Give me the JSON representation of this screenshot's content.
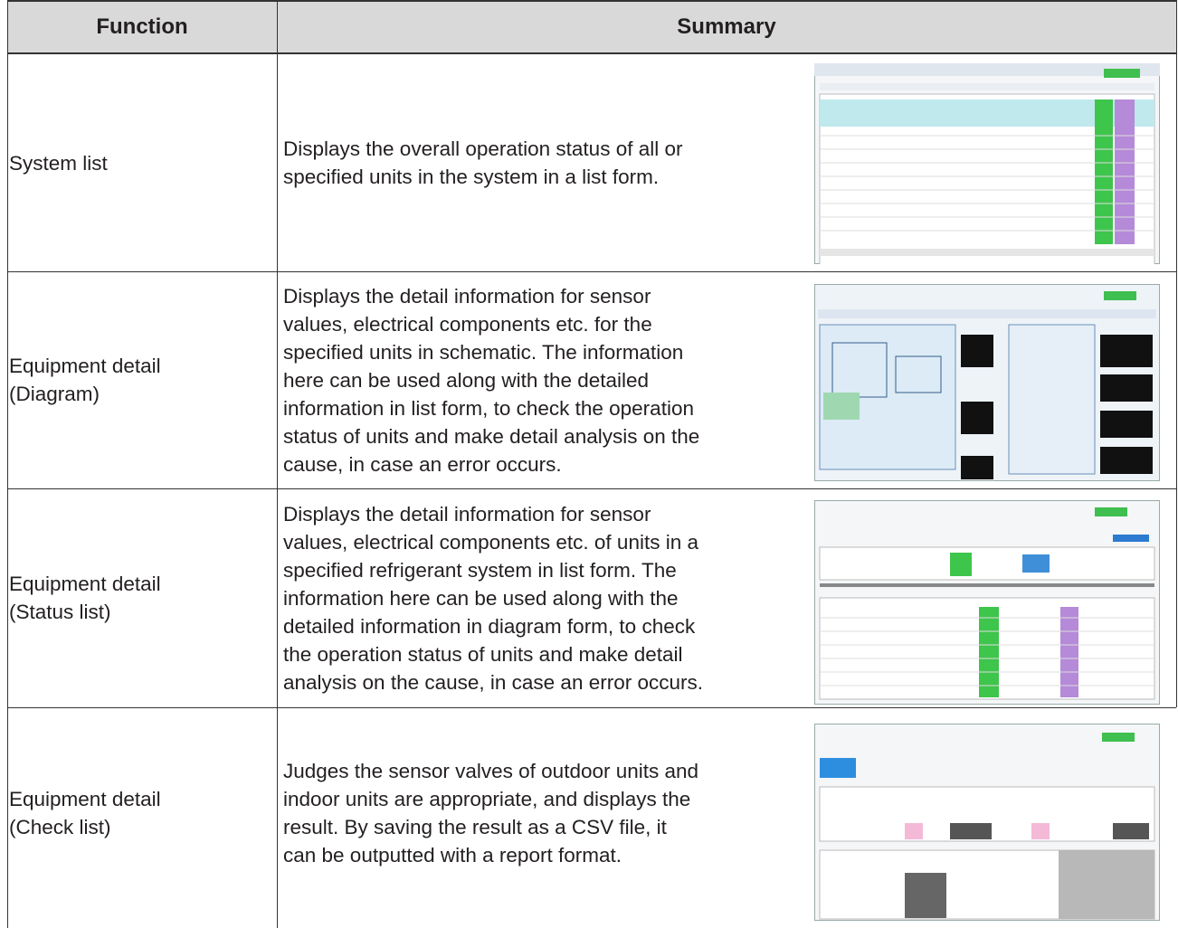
{
  "table": {
    "header": [
      "Function",
      "Summary"
    ],
    "rows": [
      {
        "function": [
          "System list"
        ],
        "summary": [
          "Displays the overall operation status of all or",
          "specified units in the system in a list form."
        ]
      },
      {
        "function": [
          "Equipment detail",
          "(Diagram)"
        ],
        "summary": [
          "Displays the detail information for sensor",
          "values, electrical components etc. for the",
          "specified units in schematic. The information",
          "here can be used along with the detailed",
          "information in list form, to check the operation",
          "status of units and make detail analysis on the",
          "cause, in case an error occurs."
        ]
      },
      {
        "function": [
          "Equipment detail",
          "(Status list)"
        ],
        "summary": [
          "Displays the detail information for sensor",
          "values, electrical components etc. of units in a",
          "specified refrigerant system in list form. The",
          "information here can be used along with the",
          "detailed information in diagram form, to check",
          "the operation status of units and make detail",
          "analysis on the cause, in case an error occurs."
        ]
      },
      {
        "function": [
          "Equipment detail",
          "(Check list)"
        ],
        "summary": [
          "Judges the sensor valves of outdoor units and",
          "indoor units are appropriate, and displays the",
          "result. By saving the result as a CSV file, it",
          "can be outputted with a report format."
        ]
      }
    ]
  }
}
